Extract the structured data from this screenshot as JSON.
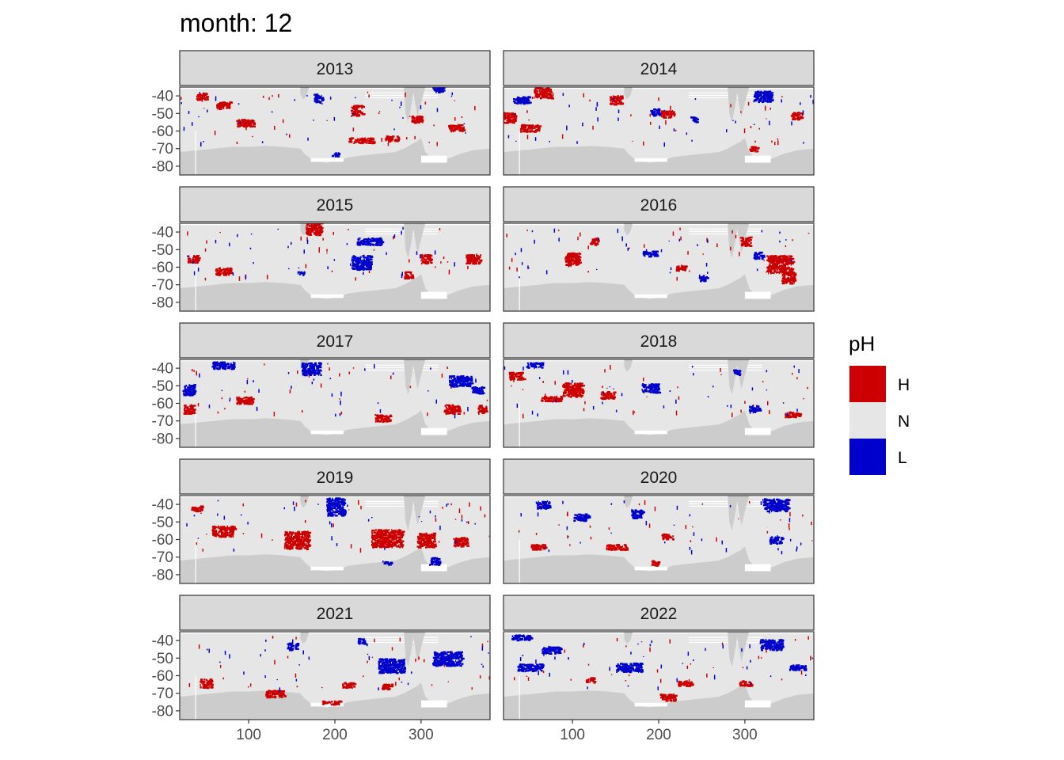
{
  "chart_data": {
    "type": "heatmap",
    "title": "month: 12",
    "xlabel": "",
    "ylabel": "",
    "x_ticks": [
      100,
      200,
      300
    ],
    "y_ticks": [
      -40,
      -50,
      -60,
      -70,
      -80
    ],
    "xlim": [
      20,
      380
    ],
    "ylim": [
      -85,
      -35
    ],
    "legend": {
      "title": "pH",
      "position": "right",
      "entries": [
        {
          "label": "H",
          "color": "#cc0000"
        },
        {
          "label": "N",
          "color": "#e6e6e6"
        },
        {
          "label": "L",
          "color": "#0000cc"
        }
      ]
    },
    "colors": {
      "ocean": "#e6e6e6",
      "land": "#cccccc",
      "ice_shelf": "#ffffff",
      "strip": "#d9d9d9"
    },
    "panels": [
      {
        "year": "2013",
        "H": [
          [
            45,
            -40,
            12,
            4
          ],
          [
            70,
            -45,
            16,
            4
          ],
          [
            95,
            -55,
            20,
            4
          ],
          [
            225,
            -48,
            14,
            6
          ],
          [
            230,
            -65,
            30,
            3
          ],
          [
            265,
            -64,
            16,
            3
          ],
          [
            340,
            -58,
            18,
            4
          ],
          [
            295,
            -53,
            14,
            4
          ]
        ],
        "L": [
          [
            180,
            -41,
            10,
            5
          ],
          [
            200,
            -73,
            8,
            2
          ],
          [
            320,
            -36,
            14,
            3
          ]
        ]
      },
      {
        "year": "2014",
        "H": [
          [
            25,
            -52,
            16,
            6
          ],
          [
            50,
            -58,
            22,
            4
          ],
          [
            65,
            -38,
            20,
            6
          ],
          [
            150,
            -42,
            14,
            5
          ],
          [
            210,
            -50,
            16,
            4
          ],
          [
            360,
            -51,
            14,
            4
          ],
          [
            310,
            -70,
            10,
            3
          ]
        ],
        "L": [
          [
            40,
            -42,
            18,
            4
          ],
          [
            195,
            -49,
            10,
            4
          ],
          [
            320,
            -40,
            22,
            6
          ],
          [
            240,
            -53,
            8,
            3
          ]
        ]
      },
      {
        "year": "2015",
        "H": [
          [
            175,
            -38,
            18,
            7
          ],
          [
            35,
            -55,
            12,
            4
          ],
          [
            70,
            -62,
            18,
            4
          ],
          [
            285,
            -64,
            10,
            4
          ],
          [
            305,
            -55,
            12,
            5
          ],
          [
            360,
            -55,
            18,
            5
          ]
        ],
        "L": [
          [
            240,
            -45,
            30,
            4
          ],
          [
            230,
            -57,
            22,
            8
          ],
          [
            160,
            -63,
            8,
            2
          ]
        ]
      },
      {
        "year": "2016",
        "H": [
          [
            100,
            -55,
            18,
            7
          ],
          [
            125,
            -45,
            10,
            4
          ],
          [
            225,
            -60,
            12,
            3
          ],
          [
            340,
            -58,
            30,
            10
          ],
          [
            350,
            -66,
            16,
            6
          ],
          [
            300,
            -45,
            12,
            5
          ]
        ],
        "L": [
          [
            190,
            -52,
            18,
            3
          ],
          [
            250,
            -66,
            10,
            3
          ],
          [
            315,
            -53,
            10,
            4
          ]
        ]
      },
      {
        "year": "2017",
        "H": [
          [
            30,
            -63,
            12,
            5
          ],
          [
            95,
            -58,
            20,
            4
          ],
          [
            255,
            -68,
            18,
            4
          ],
          [
            335,
            -63,
            18,
            5
          ],
          [
            370,
            -63,
            10,
            5
          ]
        ],
        "L": [
          [
            30,
            -52,
            14,
            6
          ],
          [
            70,
            -38,
            26,
            4
          ],
          [
            172,
            -40,
            22,
            7
          ],
          [
            345,
            -47,
            26,
            6
          ],
          [
            365,
            -52,
            14,
            4
          ]
        ]
      },
      {
        "year": "2018",
        "H": [
          [
            100,
            -52,
            24,
            8
          ],
          [
            35,
            -44,
            18,
            4
          ],
          [
            75,
            -57,
            24,
            3
          ],
          [
            140,
            -55,
            16,
            4
          ],
          [
            355,
            -66,
            18,
            3
          ]
        ],
        "L": [
          [
            190,
            -51,
            20,
            5
          ],
          [
            55,
            -38,
            18,
            3
          ],
          [
            310,
            -63,
            12,
            4
          ],
          [
            290,
            -42,
            8,
            3
          ]
        ]
      },
      {
        "year": "2019",
        "H": [
          [
            260,
            -59,
            36,
            10
          ],
          [
            155,
            -60,
            28,
            10
          ],
          [
            70,
            -55,
            26,
            6
          ],
          [
            305,
            -60,
            20,
            8
          ],
          [
            345,
            -61,
            16,
            5
          ],
          [
            40,
            -42,
            14,
            3
          ]
        ],
        "L": [
          [
            200,
            -41,
            20,
            10
          ],
          [
            260,
            -73,
            10,
            2
          ],
          [
            315,
            -72,
            12,
            4
          ]
        ]
      },
      {
        "year": "2020",
        "H": [
          [
            60,
            -64,
            18,
            3
          ],
          [
            150,
            -64,
            24,
            3
          ],
          [
            195,
            -73,
            8,
            3
          ],
          [
            210,
            -58,
            14,
            3
          ]
        ],
        "L": [
          [
            65,
            -40,
            16,
            4
          ],
          [
            110,
            -47,
            18,
            4
          ],
          [
            175,
            -45,
            14,
            5
          ],
          [
            335,
            -40,
            30,
            7
          ],
          [
            335,
            -60,
            14,
            4
          ]
        ]
      },
      {
        "year": "2021",
        "H": [
          [
            50,
            -64,
            14,
            5
          ],
          [
            130,
            -70,
            22,
            4
          ],
          [
            215,
            -65,
            14,
            3
          ],
          [
            260,
            -66,
            12,
            3
          ],
          [
            195,
            -75,
            20,
            2
          ]
        ],
        "L": [
          [
            265,
            -54,
            30,
            8
          ],
          [
            330,
            -50,
            34,
            8
          ],
          [
            150,
            -43,
            12,
            4
          ],
          [
            230,
            -40,
            8,
            3
          ]
        ]
      },
      {
        "year": "2022",
        "H": [
          [
            210,
            -72,
            18,
            4
          ],
          [
            230,
            -64,
            16,
            3
          ],
          [
            300,
            -64,
            14,
            3
          ],
          [
            120,
            -62,
            10,
            3
          ]
        ],
        "L": [
          [
            40,
            -38,
            22,
            3
          ],
          [
            50,
            -55,
            28,
            4
          ],
          [
            75,
            -45,
            22,
            4
          ],
          [
            165,
            -55,
            30,
            5
          ],
          [
            330,
            -42,
            26,
            6
          ],
          [
            360,
            -55,
            20,
            3
          ]
        ]
      }
    ]
  }
}
